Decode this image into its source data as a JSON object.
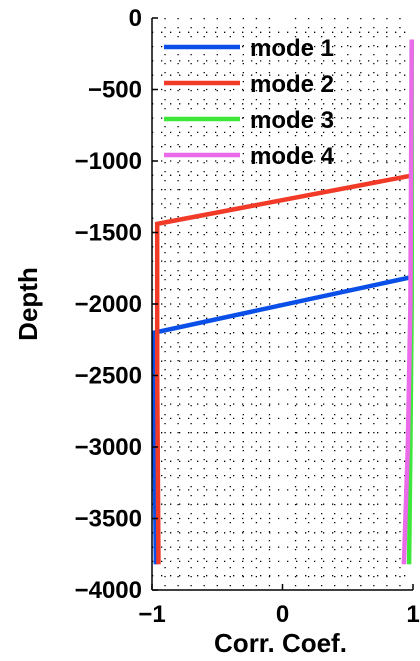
{
  "chart_data": {
    "type": "line",
    "xlabel": "Corr. Coef.",
    "ylabel": "Depth",
    "xlim": [
      -1,
      1
    ],
    "ylim": [
      -4000,
      0
    ],
    "xticks": [
      -1,
      0,
      1
    ],
    "xtick_labels": [
      "−1",
      "0",
      "1"
    ],
    "yticks": [
      0,
      -500,
      -1000,
      -1500,
      -2000,
      -2500,
      -3000,
      -3500,
      -4000
    ],
    "ytick_labels": [
      "0",
      "−500",
      "−1000",
      "−1500",
      "−2000",
      "−2500",
      "−3000",
      "−3500",
      "−4000"
    ],
    "grid": true,
    "legend_position": "top-left",
    "series": [
      {
        "name": "mode 1",
        "color": "#0a50e8",
        "x": [
          1,
          -0.98,
          -0.98,
          -0.97
        ],
        "y": [
          -1810,
          -2200,
          -3000,
          -3820
        ]
      },
      {
        "name": "mode 2",
        "color": "#f23a28",
        "x": [
          1,
          -0.96,
          -0.96,
          -0.95
        ],
        "y": [
          -1100,
          -1440,
          -2500,
          -3820
        ]
      },
      {
        "name": "mode 3",
        "color": "#3ee83a",
        "x": [
          0.99,
          0.99,
          0.98,
          0.97
        ],
        "y": [
          -150,
          -2000,
          -3000,
          -3820
        ]
      },
      {
        "name": "mode 4",
        "color": "#ea6aea",
        "x": [
          0.99,
          0.98,
          0.96,
          0.93
        ],
        "y": [
          -150,
          -2000,
          -3000,
          -3820
        ]
      }
    ]
  }
}
